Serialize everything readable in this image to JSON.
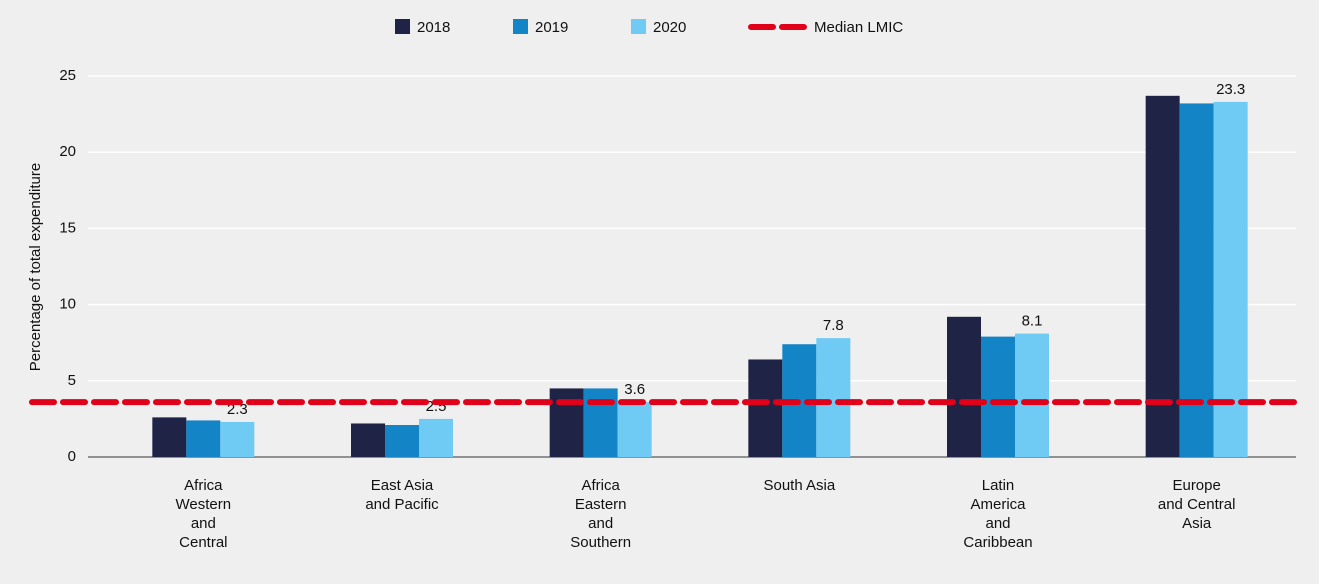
{
  "chart_data": {
    "type": "bar",
    "y_label": "Percentage of total expenditure",
    "categories": [
      "Africa\nWestern\nand\nCentral",
      "East Asia\nand Pacific",
      "Africa\nEastern\nand\nSouthern",
      "South Asia",
      "Latin\nAmerica\nand\nCaribbean",
      "Europe\nand Central\nAsia"
    ],
    "series": [
      {
        "name": "2018",
        "color": "#1f2447",
        "values": [
          2.6,
          2.2,
          4.5,
          6.4,
          9.2,
          23.7
        ]
      },
      {
        "name": "2019",
        "color": "#1385c6",
        "values": [
          2.4,
          2.1,
          4.5,
          7.4,
          7.9,
          23.2
        ]
      },
      {
        "name": "2020",
        "color": "#6fcbf3",
        "values": [
          2.3,
          2.5,
          3.6,
          7.8,
          8.1,
          23.3
        ],
        "data_labels": true
      }
    ],
    "reference_line": {
      "name": "Median LMIC",
      "value": 3.6,
      "color": "#e1001a",
      "style": "dashed"
    },
    "ylim": [
      0,
      25
    ],
    "yticks": [
      0,
      5,
      10,
      15,
      20,
      25
    ],
    "grid": true,
    "legend": "top"
  }
}
